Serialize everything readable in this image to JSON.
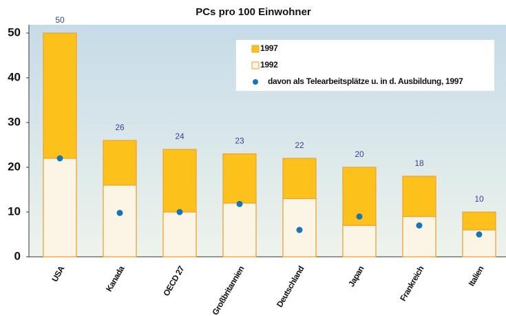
{
  "chart_data": {
    "type": "bar",
    "title": "PCs pro 100 Einwohner",
    "categories": [
      "USA",
      "Kanada",
      "OECD 27",
      "Großbritannien",
      "Deutschland",
      "Japan",
      "Frankreich",
      "Italien"
    ],
    "series": [
      {
        "name": "1997",
        "color": "#fcc21b",
        "values": [
          50,
          26,
          24,
          23,
          22,
          20,
          18,
          10
        ]
      },
      {
        "name": "1992",
        "color": "#faf5e4",
        "values": [
          22,
          16,
          10,
          12,
          13,
          7,
          9,
          6
        ]
      },
      {
        "name": "davon als Telearbeitsplätze u. in d. Ausbildung, 1997",
        "color": "#1a75b8",
        "marker": "dot",
        "values": [
          22,
          9.8,
          10,
          11.8,
          6,
          9,
          7,
          5
        ]
      }
    ],
    "ylim": [
      0,
      50
    ],
    "yticks": [
      0,
      10,
      20,
      30,
      40,
      50
    ],
    "grid": false,
    "legend": "upper right"
  }
}
